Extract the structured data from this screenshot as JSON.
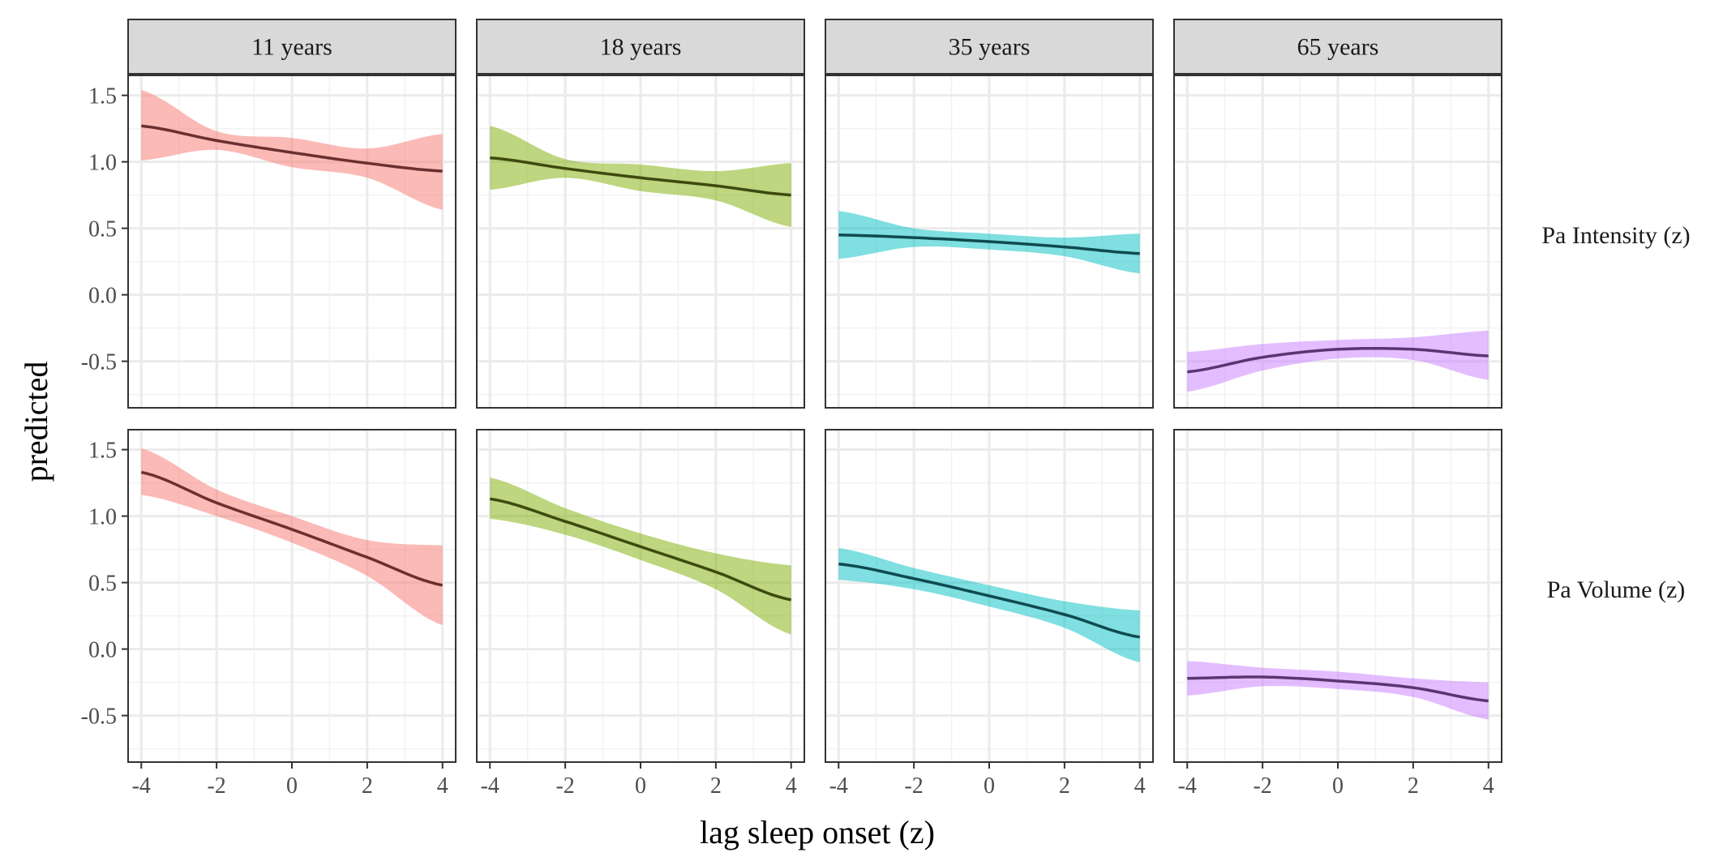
{
  "chart_data": {
    "type": "line",
    "xlabel": "lag sleep onset (z)",
    "ylabel": "predicted",
    "xlim": [
      -4.35,
      4.35
    ],
    "ylim": [
      -0.85,
      1.65
    ],
    "x_ticks": [
      -4,
      -2,
      0,
      2,
      4
    ],
    "x_tick_labels": [
      "-4",
      "-2",
      "0",
      "2",
      "4"
    ],
    "y_ticks": [
      -0.5,
      0.0,
      0.5,
      1.0,
      1.5
    ],
    "y_tick_labels": [
      "-0.5",
      "0.0",
      "0.5",
      "1.0",
      "1.5"
    ],
    "grid": true,
    "legend": "none",
    "columns": [
      {
        "label": "11 years",
        "line_color": "#6b2f2f",
        "band_color": "#F8766D"
      },
      {
        "label": "18 years",
        "line_color": "#3d4a0f",
        "band_color": "#7CAE00"
      },
      {
        "label": "35 years",
        "line_color": "#0f4a4f",
        "band_color": "#00BFC4"
      },
      {
        "label": "65 years",
        "line_color": "#5a3570",
        "band_color": "#C77CFF"
      }
    ],
    "rows": [
      {
        "label": "Pa Intensity (z)"
      },
      {
        "label": "Pa Volume (z)"
      }
    ],
    "x": [
      -4,
      -2,
      0,
      2,
      4
    ],
    "panels": [
      [
        {
          "fit": [
            1.27,
            1.16,
            1.07,
            0.99,
            0.93
          ],
          "lower": [
            1.01,
            1.09,
            0.96,
            0.88,
            0.64
          ],
          "upper": [
            1.54,
            1.23,
            1.18,
            1.1,
            1.21
          ]
        },
        {
          "fit": [
            1.03,
            0.95,
            0.88,
            0.82,
            0.75
          ],
          "lower": [
            0.79,
            0.88,
            0.78,
            0.71,
            0.51
          ],
          "upper": [
            1.27,
            1.02,
            0.98,
            0.93,
            0.99
          ]
        },
        {
          "fit": [
            0.45,
            0.43,
            0.4,
            0.36,
            0.31
          ],
          "lower": [
            0.27,
            0.36,
            0.34,
            0.29,
            0.16
          ],
          "upper": [
            0.63,
            0.5,
            0.46,
            0.43,
            0.46
          ]
        },
        {
          "fit": [
            -0.58,
            -0.47,
            -0.41,
            -0.41,
            -0.46
          ],
          "lower": [
            -0.73,
            -0.57,
            -0.48,
            -0.49,
            -0.64
          ],
          "upper": [
            -0.43,
            -0.37,
            -0.34,
            -0.32,
            -0.27
          ]
        }
      ],
      [
        {
          "fit": [
            1.33,
            1.1,
            0.9,
            0.69,
            0.48
          ],
          "lower": [
            1.16,
            1.0,
            0.8,
            0.55,
            0.18
          ],
          "upper": [
            1.51,
            1.2,
            1.0,
            0.82,
            0.78
          ]
        },
        {
          "fit": [
            1.13,
            0.96,
            0.77,
            0.58,
            0.37
          ],
          "lower": [
            0.98,
            0.86,
            0.67,
            0.45,
            0.11
          ],
          "upper": [
            1.29,
            1.06,
            0.87,
            0.72,
            0.63
          ]
        },
        {
          "fit": [
            0.64,
            0.53,
            0.4,
            0.26,
            0.09
          ],
          "lower": [
            0.52,
            0.45,
            0.32,
            0.16,
            -0.1
          ],
          "upper": [
            0.76,
            0.61,
            0.48,
            0.36,
            0.29
          ]
        },
        {
          "fit": [
            -0.22,
            -0.21,
            -0.24,
            -0.29,
            -0.39
          ],
          "lower": [
            -0.35,
            -0.28,
            -0.3,
            -0.36,
            -0.53
          ],
          "upper": [
            -0.09,
            -0.14,
            -0.17,
            -0.22,
            -0.25
          ]
        }
      ]
    ]
  }
}
